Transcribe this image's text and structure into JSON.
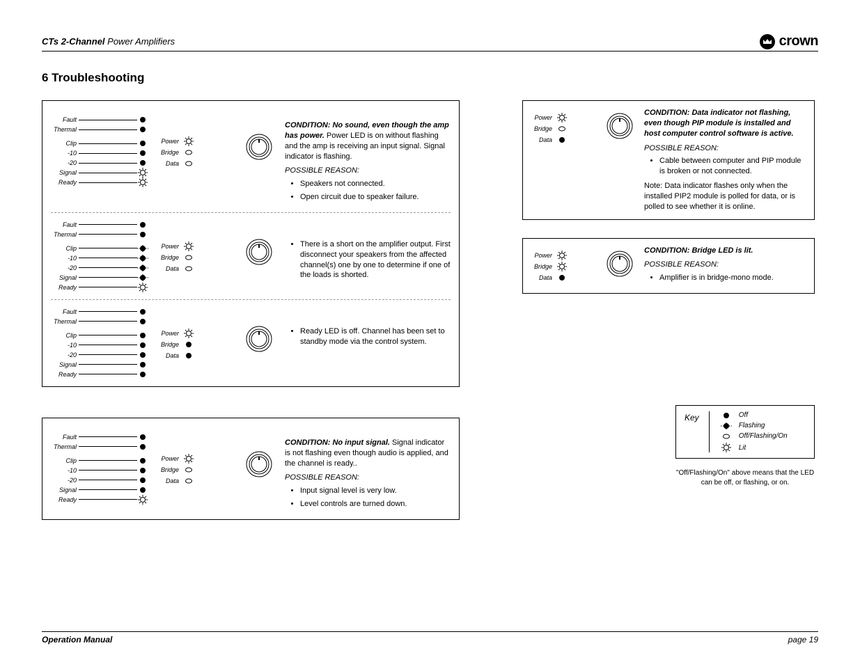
{
  "header": {
    "series": "CTs 2-Channel",
    "product": " Power Amplifiers",
    "brand": "crown"
  },
  "section_title": "6 Troubleshooting",
  "led_labels": [
    "Fault",
    "Thermal",
    "Clip",
    "-10",
    "-20",
    "Signal",
    "Ready"
  ],
  "status_labels": [
    "Power",
    "Bridge",
    "Data"
  ],
  "left_panel": {
    "rows": [
      {
        "led_states": [
          "off",
          "off",
          "off",
          "off",
          "off",
          "lit",
          "lit"
        ],
        "status_states": [
          "lit",
          "openc",
          "openc"
        ],
        "text": {
          "condition_label": "CONDITION: ",
          "condition_bold": "No sound, even though the amp has power.",
          "condition_rest": " Power LED is on without flashing and the amp is receiving an input signal. Signal indicator is flashing.",
          "reason_label": "POSSIBLE REASON:",
          "bullets": [
            "Speakers not connected.",
            "Open circuit due to speaker failure."
          ]
        }
      },
      {
        "led_states": [
          "off",
          "off",
          "flash",
          "flash",
          "flash",
          "flash",
          "lit"
        ],
        "status_states": [
          "lit",
          "openc",
          "openc"
        ],
        "text": {
          "bullets": [
            "There is a short on the amplifier output. First disconnect your speakers from the affected channel(s) one by one to determine if one of the loads is shorted."
          ]
        }
      },
      {
        "led_states": [
          "off",
          "off",
          "off",
          "off",
          "off",
          "off",
          "off"
        ],
        "status_states": [
          "lit",
          "off",
          "off"
        ],
        "text": {
          "bullets": [
            "Ready LED is off. Channel has been set to standby mode via the control system."
          ]
        }
      }
    ]
  },
  "left_panel2": {
    "rows": [
      {
        "led_states": [
          "off",
          "off",
          "off",
          "off",
          "off",
          "off",
          "lit"
        ],
        "status_states": [
          "lit",
          "openc",
          "openc"
        ],
        "text": {
          "condition_label": "CONDITION: ",
          "condition_bold": "No input signal.",
          "condition_rest": " Signal indicator is not flashing even though audio is applied, and the channel is ready..",
          "reason_label": "POSSIBLE REASON:",
          "bullets": [
            "Input signal level is very low.",
            "Level controls are turned down."
          ]
        }
      }
    ]
  },
  "right_panel1": {
    "status_states": [
      "lit",
      "openc",
      "off"
    ],
    "text": {
      "condition_label": "CONDITION: ",
      "condition_bold": "Data indicator not flashing, even though PIP module is installed and host computer control software is active.",
      "reason_label": "POSSIBLE REASON:",
      "bullets": [
        "Cable between computer and PIP module is broken or not connected."
      ],
      "note": "Note: Data indicator flashes only when the installed PIP2 module is polled for data, or is polled to see whether it is online."
    }
  },
  "right_panel2": {
    "status_states": [
      "lit",
      "lit",
      "off"
    ],
    "text": {
      "condition_label": "CONDITION: ",
      "condition_bold": "Bridge LED is lit.",
      "reason_label": "POSSIBLE REASON:",
      "bullets": [
        "Amplifier is in bridge-mono mode."
      ]
    }
  },
  "key": {
    "title": "Key",
    "rows": [
      {
        "state": "off",
        "label": "Off"
      },
      {
        "state": "flash",
        "label": "Flashing"
      },
      {
        "state": "openc",
        "label": "Off/Flashing/On"
      },
      {
        "state": "lit",
        "label": "Lit"
      }
    ],
    "note": "\"Off/Flashing/On\" above means that the LED can be off, or flashing, or on."
  },
  "footer": {
    "left": "Operation Manual",
    "right": "page 19"
  },
  "icons": {
    "off": "<svg width='10' height='10'><circle cx='5' cy='5' r='4' fill='#000'/></svg>",
    "lit": "<svg width='14' height='14'><g stroke='#000' stroke-width='1'><circle cx='7' cy='7' r='3.5' fill='none'/><line x1='7' y1='0' x2='7' y2='2.5'/><line x1='7' y1='11.5' x2='7' y2='14'/><line x1='0' y1='7' x2='2.5' y2='7'/><line x1='11.5' y1='7' x2='14' y2='7'/><line x1='2' y1='2' x2='3.8' y2='3.8'/><line x1='10.2' y1='10.2' x2='12' y2='12'/><line x1='2' y1='12' x2='3.8' y2='10.2'/><line x1='10.2' y1='3.8' x2='12' y2='2'/></g></svg>",
    "flash": "<svg width='16' height='10'><line x1='0' y1='5' x2='4' y2='5' stroke='#000' stroke-dasharray='1.5,1.5'/><circle cx='8' cy='5' r='4' fill='#000'/><line x1='12' y1='5' x2='16' y2='5' stroke='#000' stroke-dasharray='1.5,1.5'/><line x1='8' y1='0' x2='8' y2='1.5' stroke='#000'/><line x1='8' y1='8.5' x2='8' y2='10' stroke='#000'/></svg>",
    "openc": "<svg width='10' height='8'><ellipse cx='5' cy='4' rx='4.5' ry='3' fill='none' stroke='#000' stroke-width='1'/></svg>",
    "knob": "<svg class='knob-svg' width='40' height='40'><circle cx='20' cy='20' r='18' fill='none' stroke='#000' stroke-width='1'/><circle cx='20' cy='20' r='14' fill='none' stroke='#000' stroke-width='1'/><circle cx='20' cy='20' r='11' fill='none' stroke='#000' stroke-width='1'/><line x1='20' y1='9' x2='20' y2='14' stroke='#000' stroke-width='2'/></svg>"
  }
}
